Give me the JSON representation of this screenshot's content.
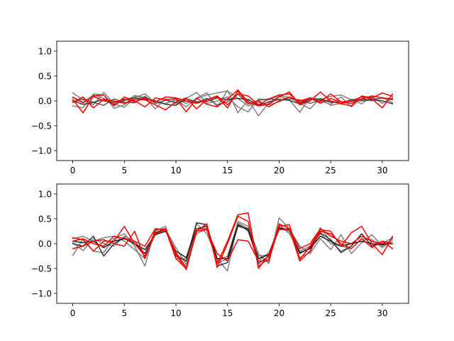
{
  "chart_data": [
    {
      "type": "line",
      "title": "",
      "xlabel": "",
      "ylabel": "",
      "xlim": [
        -1.55,
        32.55
      ],
      "ylim": [
        -1.2,
        1.2
      ],
      "xticks": [
        0,
        5,
        10,
        15,
        20,
        25,
        30
      ],
      "yticks": [
        -1.0,
        -0.5,
        0.0,
        0.5,
        1.0
      ],
      "grid": false,
      "legend": "none",
      "x": [
        0,
        1,
        2,
        3,
        4,
        5,
        6,
        7,
        8,
        9,
        10,
        11,
        12,
        13,
        14,
        15,
        16,
        17,
        18,
        19,
        20,
        21,
        22,
        23,
        24,
        25,
        26,
        27,
        28,
        29,
        30,
        31
      ],
      "series": [
        {
          "color": "#808080",
          "values": [
            0.16,
            0.02,
            -0.08,
            0.17,
            -0.05,
            0.0,
            0.1,
            0.05,
            0.0,
            -0.06,
            0.04,
            -0.05,
            0.04,
            0.12,
            0.16,
            0.2,
            0.05,
            -0.1,
            -0.03,
            -0.08,
            -0.02,
            0.08,
            -0.03,
            0.06,
            0.03,
            0.09,
            0.12,
            0.02,
            0.0,
            0.04,
            0.05,
            0.02
          ]
        },
        {
          "color": "#808080",
          "values": [
            0.08,
            -0.03,
            0.12,
            0.05,
            -0.06,
            -0.13,
            0.07,
            0.14,
            -0.04,
            -0.05,
            0.02,
            -0.12,
            0.06,
            0.16,
            -0.12,
            0.21,
            -0.24,
            0.02,
            -0.3,
            -0.04,
            0.09,
            0.02,
            -0.23,
            0.07,
            0.0,
            -0.07,
            0.08,
            -0.12,
            0.05,
            0.0,
            0.07,
            -0.04
          ]
        },
        {
          "color": "#808080",
          "values": [
            -0.1,
            -0.14,
            0.14,
            0.12,
            -0.15,
            -0.08,
            0.11,
            0.07,
            -0.16,
            0.05,
            -0.06,
            0.05,
            0.17,
            -0.05,
            0.0,
            0.08,
            -0.12,
            -0.22,
            0.04,
            0.02,
            0.11,
            0.07,
            -0.05,
            -0.16,
            0.05,
            -0.09,
            -0.05,
            0.03,
            -0.06,
            0.09,
            -0.05,
            0.06
          ]
        },
        {
          "color": "#5a5a5a",
          "values": [
            -0.03,
            0.04,
            -0.03,
            -0.09,
            0.04,
            -0.03,
            -0.04,
            0.09,
            -0.05,
            0.01,
            -0.03,
            0.0,
            -0.04,
            0.05,
            -0.08,
            -0.02,
            0.14,
            -0.06,
            0.01,
            0.04,
            0.02,
            0.04,
            0.02,
            -0.05,
            0.01,
            0.0,
            -0.06,
            0.03,
            0.0,
            0.02,
            0.06,
            0.03
          ]
        },
        {
          "color": "#3a3a3a",
          "values": [
            0.0,
            -0.07,
            -0.03,
            0.03,
            -0.08,
            0.02,
            0.06,
            0.03,
            0.0,
            -0.07,
            -0.09,
            0.04,
            -0.02,
            -0.01,
            0.06,
            0.02,
            0.05,
            0.03,
            -0.09,
            -0.02,
            0.03,
            0.01,
            -0.06,
            0.03,
            0.04,
            -0.03,
            -0.02,
            -0.01,
            0.03,
            0.02,
            0.0,
            -0.06
          ]
        },
        {
          "color": "#ff0000",
          "values": [
            0.03,
            -0.24,
            0.1,
            0.12,
            -0.1,
            0.08,
            0.0,
            -0.12,
            0.06,
            0.02,
            0.05,
            -0.22,
            0.05,
            -0.07,
            -0.12,
            0.04,
            0.22,
            -0.02,
            -0.1,
            -0.07,
            0.08,
            0.18,
            -0.08,
            0.0,
            0.18,
            0.0,
            -0.06,
            -0.1,
            0.1,
            0.06,
            0.16,
            0.09
          ]
        },
        {
          "color": "#ff0000",
          "values": [
            0.07,
            -0.04,
            0.09,
            0.0,
            -0.03,
            0.04,
            -0.02,
            0.06,
            -0.02,
            0.08,
            0.06,
            0.0,
            -0.05,
            0.02,
            0.1,
            -0.08,
            0.14,
            0.1,
            -0.08,
            0.04,
            0.12,
            0.14,
            -0.04,
            0.06,
            -0.02,
            0.14,
            -0.02,
            0.0,
            0.08,
            0.04,
            -0.14,
            0.14
          ]
        },
        {
          "color": "#ff0000",
          "values": [
            -0.03,
            0.08,
            -0.14,
            0.03,
            0.0,
            -0.05,
            0.03,
            0.02,
            -0.08,
            -0.18,
            -0.02,
            0.06,
            -0.16,
            0.03,
            0.08,
            -0.14,
            0.2,
            -0.06,
            0.0,
            -0.12,
            0.0,
            0.08,
            0.0,
            0.06,
            -0.05,
            0.05,
            -0.03,
            -0.05,
            0.04,
            0.1,
            0.06,
            0.04
          ]
        }
      ]
    },
    {
      "type": "line",
      "title": "",
      "xlabel": "",
      "ylabel": "",
      "xlim": [
        -1.55,
        32.55
      ],
      "ylim": [
        -1.2,
        1.2
      ],
      "xticks": [
        0,
        5,
        10,
        15,
        20,
        25,
        30
      ],
      "yticks": [
        -1.0,
        -0.5,
        0.0,
        0.5,
        1.0
      ],
      "grid": false,
      "legend": "none",
      "x": [
        0,
        1,
        2,
        3,
        4,
        5,
        6,
        7,
        8,
        9,
        10,
        11,
        12,
        13,
        14,
        15,
        16,
        17,
        18,
        19,
        20,
        21,
        22,
        23,
        24,
        25,
        26,
        27,
        28,
        29,
        30,
        31
      ],
      "series": [
        {
          "color": "#808080",
          "values": [
            -0.24,
            0.1,
            -0.15,
            -0.18,
            0.1,
            0.2,
            -0.05,
            -0.45,
            0.3,
            0.28,
            -0.08,
            -0.42,
            0.4,
            0.2,
            -0.3,
            -0.55,
            0.45,
            0.35,
            -0.2,
            -0.4,
            0.52,
            0.3,
            -0.05,
            -0.2,
            0.1,
            -0.12,
            0.18,
            -0.2,
            0.02,
            0.18,
            -0.05,
            0.05
          ]
        },
        {
          "color": "#808080",
          "values": [
            0.1,
            0.15,
            0.05,
            0.12,
            0.15,
            0.05,
            -0.12,
            -0.3,
            0.2,
            0.3,
            -0.22,
            -0.35,
            0.2,
            0.3,
            -0.4,
            -0.3,
            0.4,
            0.25,
            -0.35,
            -0.18,
            0.3,
            0.25,
            -0.28,
            -0.18,
            0.32,
            0.05,
            -0.15,
            -0.05,
            0.2,
            -0.05,
            0.0,
            0.12
          ]
        },
        {
          "color": "#808080",
          "values": [
            0.02,
            -0.14,
            0.1,
            0.0,
            -0.05,
            0.15,
            0.05,
            -0.2,
            0.25,
            0.35,
            -0.3,
            -0.3,
            0.42,
            0.38,
            -0.35,
            -0.25,
            0.42,
            0.3,
            -0.25,
            -0.22,
            0.38,
            0.2,
            -0.15,
            -0.05,
            0.2,
            0.0,
            -0.05,
            -0.1,
            0.1,
            0.08,
            -0.08,
            0.1
          ]
        },
        {
          "color": "#3a3a3a",
          "values": [
            0.0,
            -0.05,
            0.15,
            -0.25,
            0.0,
            0.12,
            0.0,
            -0.2,
            0.22,
            0.3,
            -0.25,
            -0.35,
            0.42,
            0.38,
            -0.45,
            -0.38,
            0.35,
            0.3,
            -0.4,
            -0.25,
            0.3,
            0.28,
            -0.2,
            -0.08,
            0.22,
            0.08,
            -0.18,
            -0.05,
            0.2,
            -0.05,
            0.05,
            0.0
          ]
        },
        {
          "color": "#1e1e1e",
          "values": [
            0.05,
            0.02,
            0.05,
            -0.08,
            0.05,
            0.1,
            0.0,
            -0.12,
            0.18,
            0.25,
            -0.15,
            -0.28,
            0.3,
            0.35,
            -0.3,
            -0.3,
            0.38,
            0.28,
            -0.3,
            -0.22,
            0.32,
            0.28,
            -0.18,
            -0.1,
            0.15,
            0.05,
            -0.05,
            0.0,
            0.05,
            0.0,
            -0.02,
            0.0
          ]
        },
        {
          "color": "#ff0000",
          "values": [
            0.12,
            0.08,
            -0.15,
            0.05,
            0.05,
            0.35,
            0.0,
            -0.25,
            0.2,
            0.28,
            -0.18,
            -0.48,
            0.25,
            0.4,
            -0.48,
            0.0,
            0.55,
            0.45,
            -0.45,
            -0.3,
            0.4,
            0.3,
            -0.35,
            -0.15,
            0.25,
            0.2,
            0.0,
            -0.1,
            0.1,
            -0.08,
            0.05,
            -0.1
          ]
        },
        {
          "color": "#ff0000",
          "values": [
            -0.1,
            -0.05,
            0.05,
            0.08,
            0.0,
            -0.05,
            0.25,
            -0.3,
            0.28,
            0.3,
            -0.22,
            -0.52,
            0.25,
            0.28,
            -0.2,
            -0.35,
            0.08,
            0.05,
            -0.35,
            -0.35,
            0.35,
            0.38,
            -0.32,
            -0.05,
            0.28,
            0.25,
            -0.05,
            0.22,
            0.35,
            0.0,
            -0.22,
            0.15
          ]
        },
        {
          "color": "#ff0000",
          "values": [
            0.05,
            0.1,
            0.0,
            -0.05,
            0.15,
            0.1,
            0.05,
            -0.05,
            0.3,
            0.28,
            -0.3,
            -0.5,
            0.3,
            0.3,
            -0.4,
            0.05,
            0.58,
            0.62,
            -0.5,
            -0.22,
            0.28,
            0.3,
            -0.1,
            0.0,
            0.3,
            0.15,
            0.05,
            0.0,
            0.15,
            0.05,
            0.0,
            0.0
          ]
        }
      ]
    }
  ]
}
